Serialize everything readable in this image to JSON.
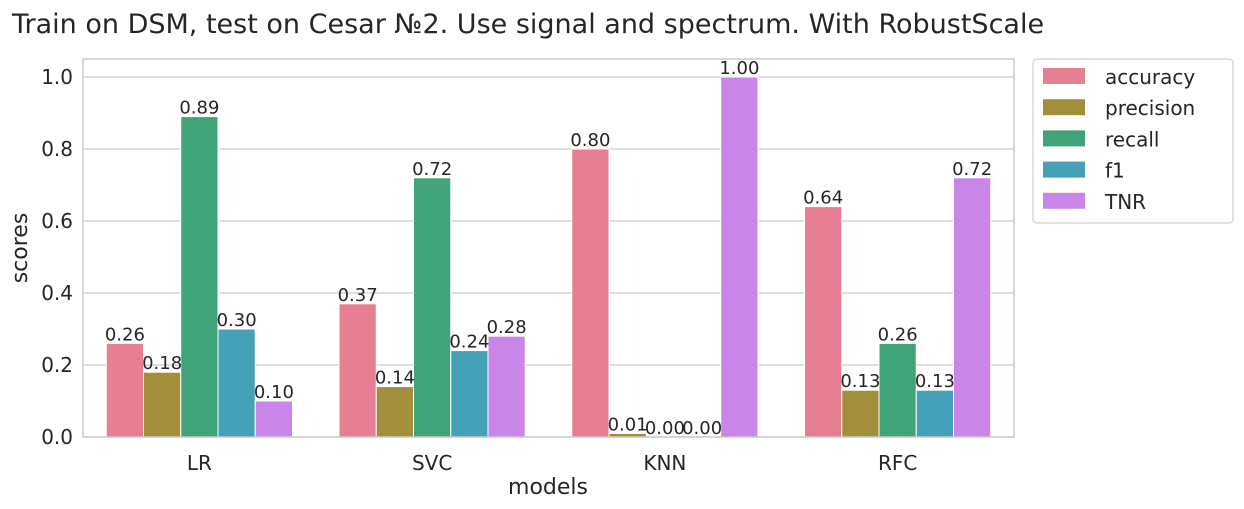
{
  "chart_data": {
    "type": "bar",
    "title": "Train on DSM, test on Cesar №2. Use signal and spectrum. With RobustScale",
    "xlabel": "models",
    "ylabel": "scores",
    "categories": [
      "LR",
      "SVC",
      "KNN",
      "RFC"
    ],
    "ylim": [
      0,
      1.05
    ],
    "yticks": [
      "0.0",
      "0.2",
      "0.4",
      "0.6",
      "0.8",
      "1.0"
    ],
    "grid": true,
    "legend_position": "outside-top-right",
    "series": [
      {
        "name": "accuracy",
        "color": "#e77f92",
        "values": [
          0.26,
          0.37,
          0.8,
          0.64
        ],
        "labels": [
          "0.26",
          "0.37",
          "0.80",
          "0.64"
        ]
      },
      {
        "name": "precision",
        "color": "#a38e3b",
        "values": [
          0.18,
          0.14,
          0.01,
          0.13
        ],
        "labels": [
          "0.18",
          "0.14",
          "0.01",
          "0.13"
        ]
      },
      {
        "name": "recall",
        "color": "#41a378",
        "values": [
          0.89,
          0.72,
          0.0,
          0.26
        ],
        "labels": [
          "0.89",
          "0.72",
          "0.00",
          "0.26"
        ]
      },
      {
        "name": "f1",
        "color": "#44a1b7",
        "values": [
          0.3,
          0.24,
          0.0,
          0.13
        ],
        "labels": [
          "0.30",
          "0.24",
          "0.00",
          "0.13"
        ]
      },
      {
        "name": "TNR",
        "color": "#c986e8",
        "values": [
          0.1,
          0.28,
          1.0,
          0.72
        ],
        "labels": [
          "0.10",
          "0.28",
          "1.00",
          "0.72"
        ]
      }
    ]
  }
}
